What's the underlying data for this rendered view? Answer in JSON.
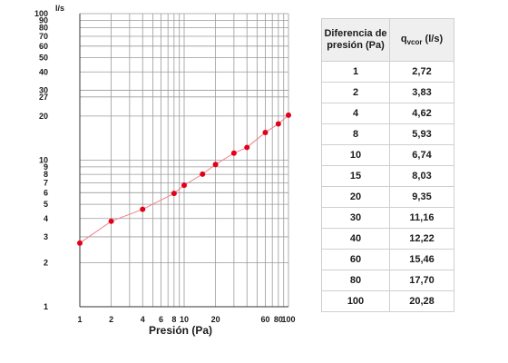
{
  "chart_data": {
    "type": "line",
    "xscale": "log",
    "yscale": "log",
    "xlim": [
      1,
      100
    ],
    "ylim": [
      1,
      100
    ],
    "xlabel": "Presión (Pa)",
    "ylabel": "l/s",
    "xticks": [
      "1",
      "2",
      "4",
      "6",
      "8",
      "10",
      "20",
      "60",
      "80",
      "100"
    ],
    "yticks": [
      "1",
      "2",
      "3",
      "4",
      "5",
      "6",
      "7",
      "8",
      "9",
      "10",
      "20",
      "27",
      "30",
      "40",
      "50",
      "60",
      "70",
      "80",
      "90",
      "100"
    ],
    "grid": true,
    "point_color": "#e3001b",
    "line_color": "#f07f89",
    "series": [
      {
        "x": [
          1,
          2,
          4,
          8,
          10,
          15,
          20,
          30,
          40,
          60,
          80,
          100
        ],
        "y": [
          2.72,
          3.83,
          4.62,
          5.93,
          6.74,
          8.03,
          9.35,
          11.16,
          12.22,
          15.46,
          17.7,
          20.28
        ]
      }
    ]
  },
  "table": {
    "header_a": "Diferencia de presión (Pa)",
    "header_b_main": "q",
    "header_b_sub": "vcor",
    "header_b_unit": " (l/s)",
    "rows": [
      [
        "1",
        "2,72"
      ],
      [
        "2",
        "3,83"
      ],
      [
        "4",
        "4,62"
      ],
      [
        "8",
        "5,93"
      ],
      [
        "10",
        "6,74"
      ],
      [
        "15",
        "8,03"
      ],
      [
        "20",
        "9,35"
      ],
      [
        "30",
        "11,16"
      ],
      [
        "40",
        "12,22"
      ],
      [
        "60",
        "15,46"
      ],
      [
        "80",
        "17,70"
      ],
      [
        "100",
        "20,28"
      ]
    ]
  }
}
